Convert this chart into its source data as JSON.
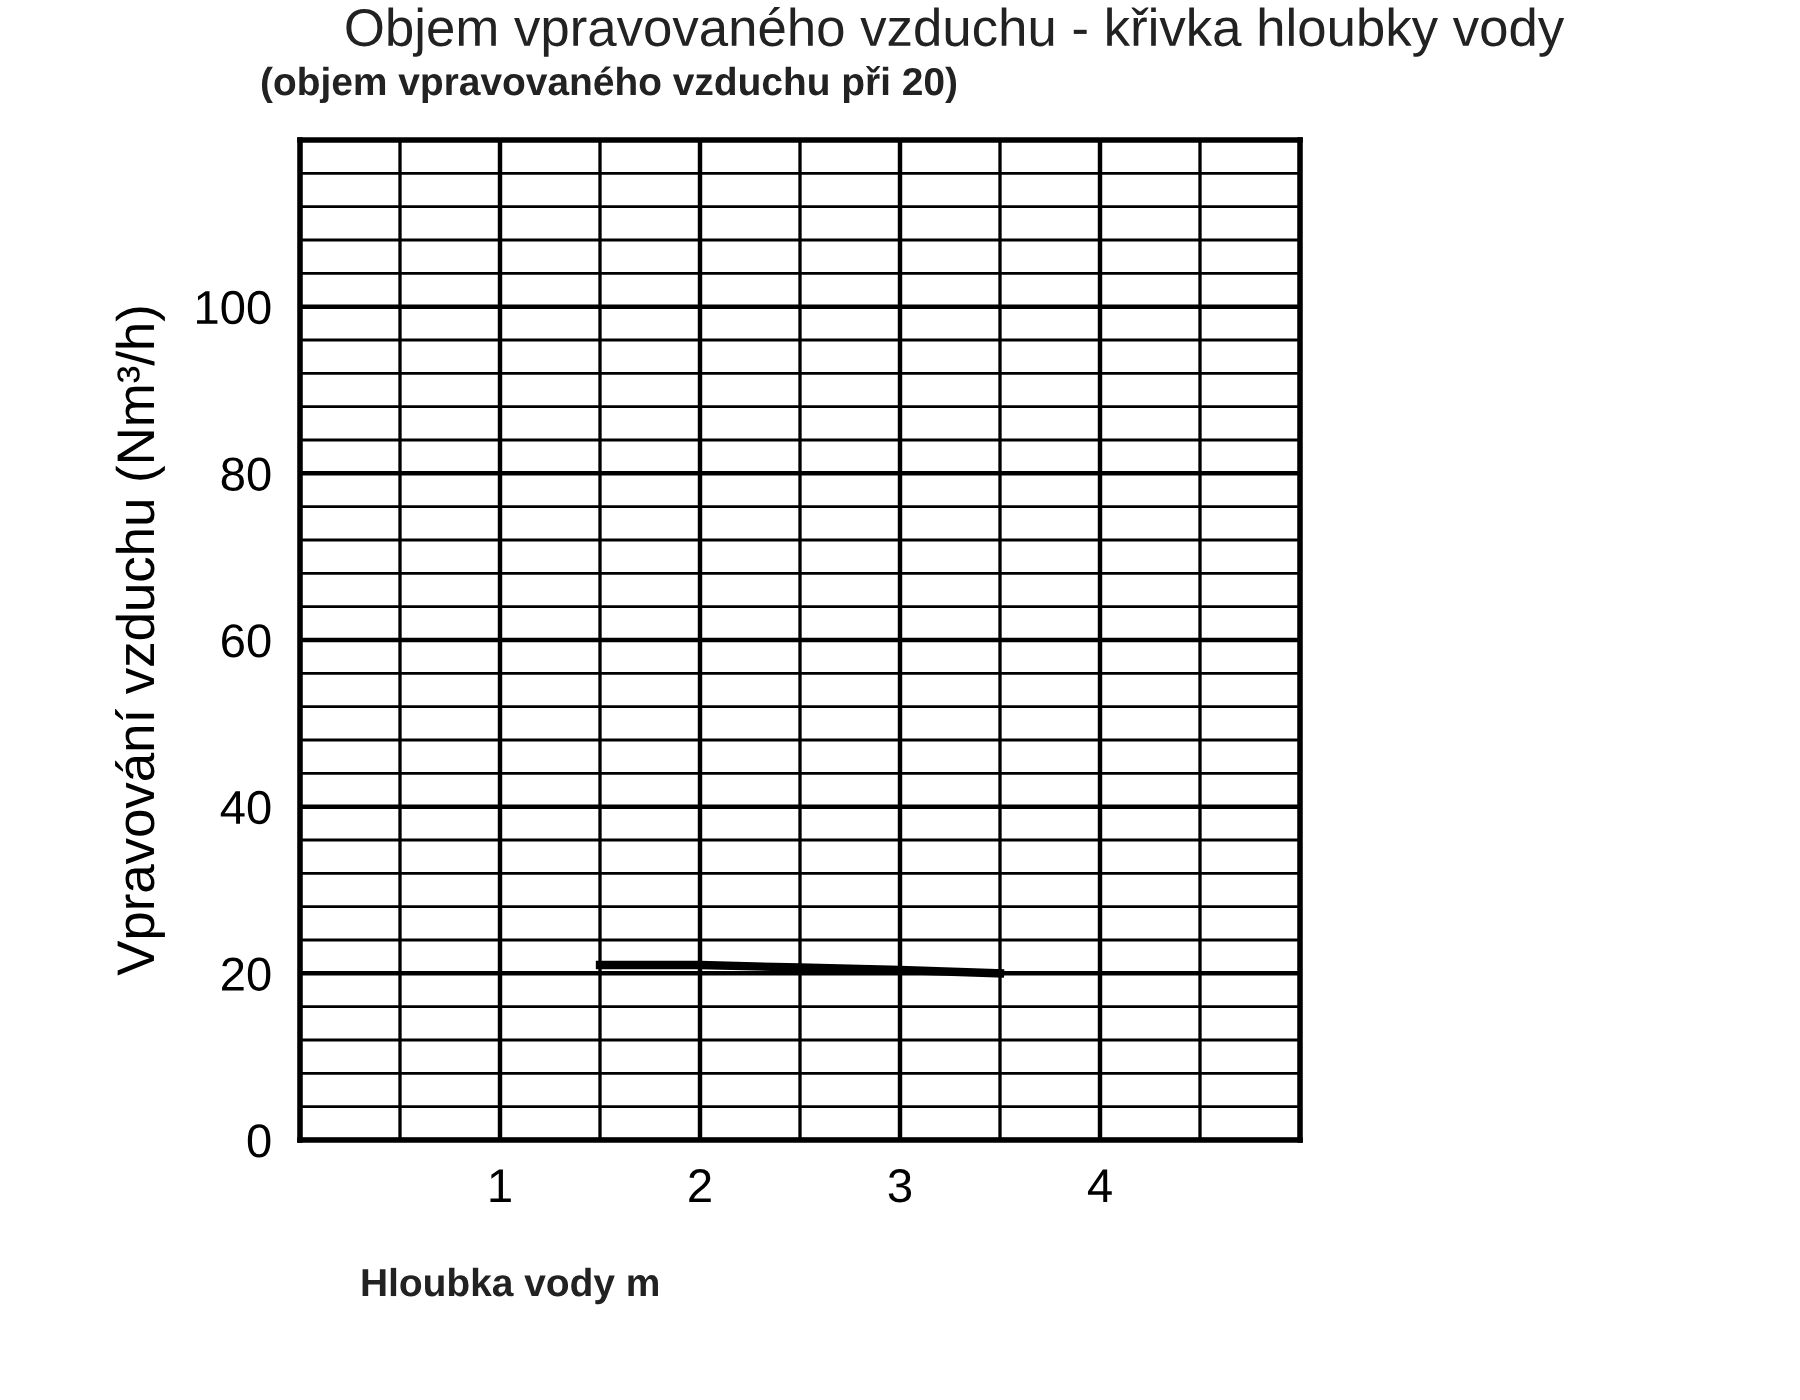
{
  "chart_data": {
    "type": "line",
    "title": "Objem vpravovaného vzduchu - křivka hloubky vody",
    "subtitle": "(objem vpravovaného vzduchu při 20)",
    "xlabel": "Hloubka vody m",
    "ylabel": "Vpravování vzduchu (Nm³/h)",
    "x": [
      1.5,
      2.0,
      2.5,
      3.0,
      3.5
    ],
    "series": [
      {
        "color": "#000000",
        "values": [
          21,
          21,
          20.7,
          20.4,
          20
        ]
      }
    ],
    "xlim": [
      0,
      5
    ],
    "xticks": [
      {
        "value": 0,
        "label": null
      },
      {
        "value": 0.5,
        "label": null
      },
      1,
      {
        "value": 1.5,
        "label": null
      },
      2,
      {
        "value": 2.5,
        "label": null
      },
      3,
      {
        "value": 3.5,
        "label": null
      },
      4,
      {
        "value": 4.5,
        "label": null
      },
      {
        "value": 5,
        "label": null
      }
    ],
    "ylim": [
      0,
      120
    ],
    "yticks": [
      0,
      {
        "value": 4,
        "label": null
      },
      {
        "value": 8,
        "label": null
      },
      {
        "value": 12,
        "label": null
      },
      {
        "value": 16,
        "label": null
      },
      20,
      {
        "value": 24,
        "label": null
      },
      {
        "value": 28,
        "label": null
      },
      {
        "value": 32,
        "label": null
      },
      {
        "value": 36,
        "label": null
      },
      40,
      {
        "value": 44,
        "label": null
      },
      {
        "value": 48,
        "label": null
      },
      {
        "value": 52,
        "label": null
      },
      {
        "value": 56,
        "label": null
      },
      60,
      {
        "value": 64,
        "label": null
      },
      {
        "value": 68,
        "label": null
      },
      {
        "value": 72,
        "label": null
      },
      {
        "value": 76,
        "label": null
      },
      80,
      {
        "value": 84,
        "label": null
      },
      {
        "value": 88,
        "label": null
      },
      {
        "value": 92,
        "label": null
      },
      {
        "value": 96,
        "label": null
      },
      100,
      {
        "value": 104,
        "label": null
      },
      {
        "value": 108,
        "label": null
      },
      {
        "value": 112,
        "label": null
      },
      {
        "value": 116,
        "label": null
      },
      {
        "value": 120,
        "label": null
      }
    ],
    "grid": true,
    "line_style": "solid"
  }
}
